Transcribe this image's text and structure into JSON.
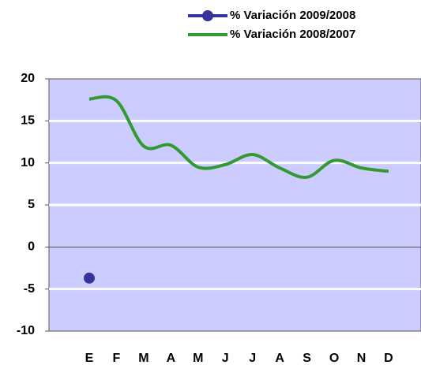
{
  "chart_data": {
    "type": "line",
    "categories": [
      "E",
      "F",
      "M",
      "A",
      "M",
      "J",
      "J",
      "A",
      "S",
      "O",
      "N",
      "D"
    ],
    "series": [
      {
        "name": "% Variación 2009/2008",
        "color": "#333399",
        "values": [
          -3.7,
          null,
          null,
          null,
          null,
          null,
          null,
          null,
          null,
          null,
          null,
          null
        ]
      },
      {
        "name": "% Variación 2008/2007",
        "color": "#339933",
        "values": [
          17.6,
          17.4,
          12,
          12.1,
          9.5,
          9.8,
          11,
          9.4,
          8.3,
          10.3,
          9.4,
          9
        ]
      }
    ],
    "ylim": [
      -10,
      20
    ],
    "yticks": [
      -10,
      -5,
      0,
      5,
      10,
      15,
      20
    ],
    "grid": true,
    "legend": "top-right"
  }
}
